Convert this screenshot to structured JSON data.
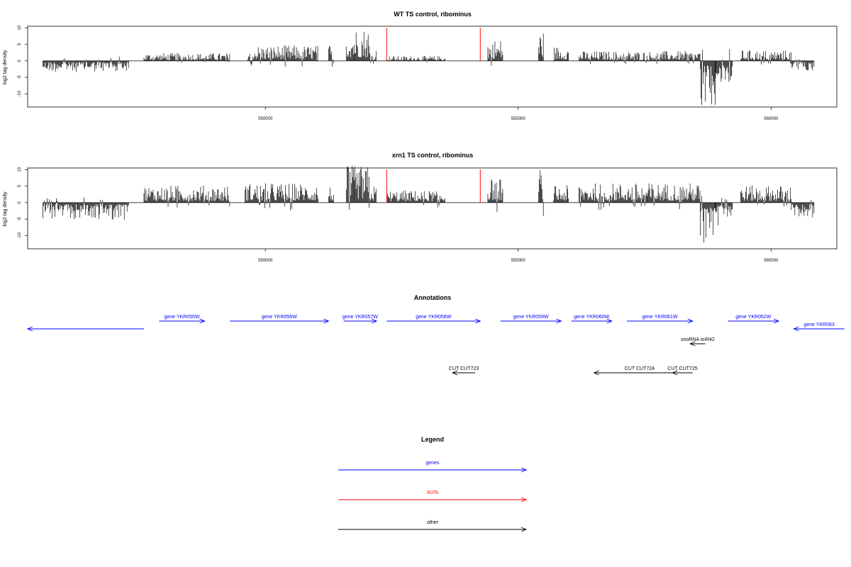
{
  "chart_data": [
    {
      "type": "bar",
      "title": "WT TS control, ribominus",
      "ylabel": "log2 tag density",
      "xlabel": "",
      "xlim": [
        545300,
        561300
      ],
      "ylim": [
        -14,
        10.5
      ],
      "y_ticks": [
        10,
        5,
        0,
        -5,
        -10
      ],
      "x_ticks": [
        550000,
        555000,
        560000
      ],
      "x_tick_labels": [
        "550000",
        "555000",
        "560000"
      ],
      "segments": [
        {
          "start": 545600,
          "end": 547300,
          "level": -2.3
        },
        {
          "start": 547600,
          "end": 549300,
          "level": 1.6
        },
        {
          "start": 549650,
          "end": 551050,
          "level": 3.2
        },
        {
          "start": 551250,
          "end": 551350,
          "level": 3.5
        },
        {
          "start": 551600,
          "end": 552050,
          "level": 7.0
        },
        {
          "start": 552050,
          "end": 552200,
          "level": 2.5
        },
        {
          "start": 552400,
          "end": 553550,
          "level": 1.0
        },
        {
          "start": 554400,
          "end": 554700,
          "level": 4.5
        },
        {
          "start": 555400,
          "end": 555500,
          "level": 6.5
        },
        {
          "start": 555700,
          "end": 556000,
          "level": 3.0
        },
        {
          "start": 556200,
          "end": 558600,
          "level": 2.0
        },
        {
          "start": 558600,
          "end": 558900,
          "level": -9.0
        },
        {
          "start": 558900,
          "end": 559250,
          "level": -6.0
        },
        {
          "start": 559400,
          "end": 560400,
          "level": 2.2
        },
        {
          "start": 560400,
          "end": 560850,
          "level": -2.0
        }
      ],
      "xut_markers": [
        552400,
        554250
      ]
    },
    {
      "type": "bar",
      "title": "xrn1 TS control, ribominus",
      "ylabel": "log2 tag density",
      "xlabel": "",
      "xlim": [
        545300,
        561300
      ],
      "ylim": [
        -14,
        10.5
      ],
      "y_ticks": [
        10,
        5,
        0,
        -5,
        -10
      ],
      "x_ticks": [
        550000,
        555000,
        560000
      ],
      "x_tick_labels": [
        "550000",
        "555000",
        "560000"
      ],
      "segments": [
        {
          "start": 545600,
          "end": 547300,
          "level": -3.5
        },
        {
          "start": 547600,
          "end": 549300,
          "level": 3.5
        },
        {
          "start": 549600,
          "end": 551050,
          "level": 4.0
        },
        {
          "start": 551250,
          "end": 551350,
          "level": 3.5
        },
        {
          "start": 551600,
          "end": 552050,
          "level": 7.5
        },
        {
          "start": 552050,
          "end": 552200,
          "level": 3.5
        },
        {
          "start": 552400,
          "end": 553550,
          "level": 2.5
        },
        {
          "start": 554400,
          "end": 554700,
          "level": 5.0
        },
        {
          "start": 555400,
          "end": 555500,
          "level": 7.0
        },
        {
          "start": 555700,
          "end": 556000,
          "level": 3.5
        },
        {
          "start": 556200,
          "end": 558600,
          "level": 4.0
        },
        {
          "start": 558600,
          "end": 558900,
          "level": -8.5
        },
        {
          "start": 558900,
          "end": 559250,
          "level": -5.0
        },
        {
          "start": 559400,
          "end": 560400,
          "level": 3.5
        },
        {
          "start": 560400,
          "end": 560850,
          "level": -3.0
        }
      ],
      "xut_markers": [
        552400,
        554250
      ]
    }
  ],
  "annotations": {
    "title": "Annotations",
    "features": [
      {
        "label": "",
        "start": 545300,
        "end": 547600,
        "strand": "-",
        "class": "gene",
        "row": 1
      },
      {
        "label": "gene YKR055W",
        "start": 547900,
        "end": 548800,
        "strand": "+",
        "class": "gene",
        "row": 0
      },
      {
        "label": "gene YKR056W",
        "start": 549300,
        "end": 551250,
        "strand": "+",
        "class": "gene",
        "row": 0
      },
      {
        "label": "gene YKR057W",
        "start": 551550,
        "end": 552200,
        "strand": "+",
        "class": "gene",
        "row": 0
      },
      {
        "label": "gene YKR058W",
        "start": 552400,
        "end": 554250,
        "strand": "+",
        "class": "gene",
        "row": 0
      },
      {
        "label": "gene YKR059W",
        "start": 554650,
        "end": 555850,
        "strand": "+",
        "class": "gene",
        "row": 0
      },
      {
        "label": "gene YKR060W",
        "start": 556050,
        "end": 556850,
        "strand": "+",
        "class": "gene",
        "row": 0
      },
      {
        "label": "gene YKR061W",
        "start": 557150,
        "end": 558450,
        "strand": "+",
        "class": "gene",
        "row": 0
      },
      {
        "label": "gene YKR062W",
        "start": 559150,
        "end": 560150,
        "strand": "+",
        "class": "gene",
        "row": 0
      },
      {
        "label": "gene YKR063",
        "start": 560450,
        "end": 561450,
        "strand": "-",
        "class": "gene",
        "row": 1
      },
      {
        "label": "snoRNA snR42",
        "start": 558400,
        "end": 558700,
        "strand": "-",
        "class": "other",
        "row": 2
      },
      {
        "label": "CUT CUT723",
        "start": 553700,
        "end": 554150,
        "strand": "-",
        "class": "other",
        "row": 3
      },
      {
        "label": "CUT CUT724",
        "start": 556500,
        "end": 558300,
        "strand": "-",
        "class": "other",
        "row": 3
      },
      {
        "label": "CUT CUT725",
        "start": 558050,
        "end": 558450,
        "strand": "-",
        "class": "other",
        "row": 3
      }
    ]
  },
  "legend": {
    "title": "Legend",
    "items": [
      {
        "label": "genes",
        "color": "#0000ff"
      },
      {
        "label": "XUTs",
        "color": "#ff0000"
      },
      {
        "label": "other",
        "color": "#000000"
      }
    ]
  },
  "colors": {
    "gene": "#0000ff",
    "xut": "#ff0000",
    "other": "#000000",
    "bars": "#000000",
    "axis": "#000000"
  }
}
